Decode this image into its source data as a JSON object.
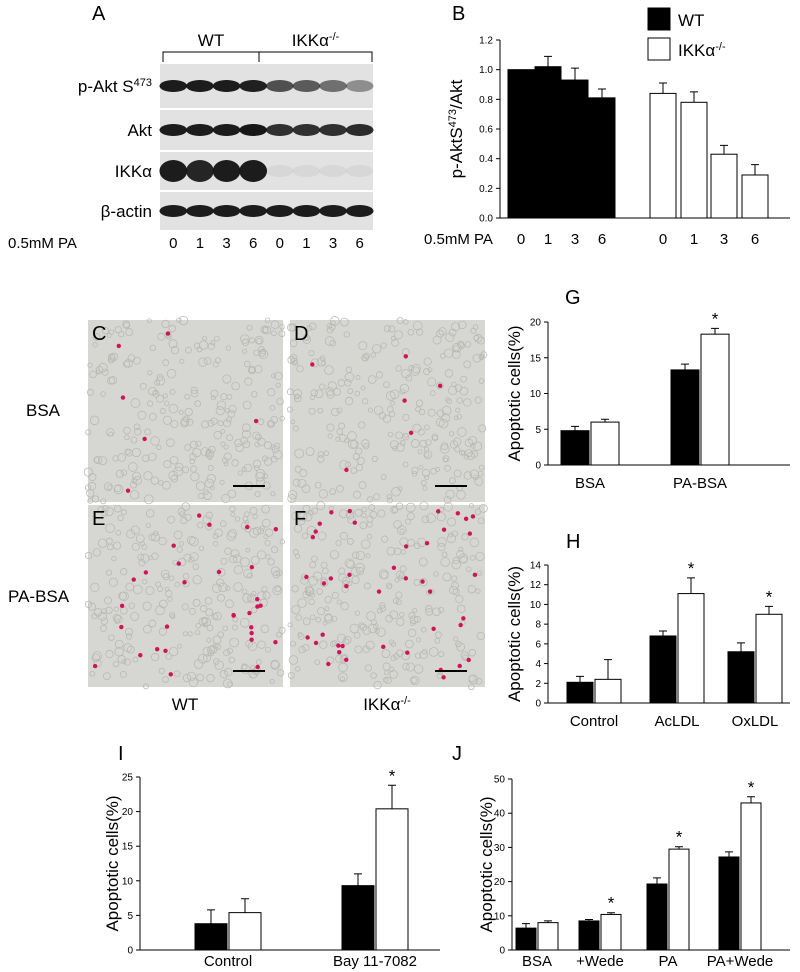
{
  "blot": {
    "panel": "A",
    "groups": [
      {
        "text": "WT"
      },
      {
        "text": "IKKα",
        "sup": "-/-"
      }
    ],
    "rows": [
      {
        "text": "p-Akt S",
        "sup": "473"
      },
      {
        "text": "Akt"
      },
      {
        "text": "IKKα"
      },
      {
        "text": "β-actin"
      }
    ],
    "treatment": "0.5mM PA",
    "lanes": [
      "0",
      "1",
      "3",
      "6",
      "0",
      "1",
      "3",
      "6"
    ]
  },
  "micrographs": {
    "panels": [
      "C",
      "D",
      "E",
      "F"
    ],
    "rows": [
      "BSA",
      "PA-BSA"
    ],
    "columns": [
      {
        "text": "WT"
      },
      {
        "text": "IKKα",
        "sup": "-/-"
      }
    ]
  },
  "chart_data": [
    {
      "type": "bar",
      "panel": "B",
      "ylabel": {
        "text": "p-AktS",
        "sup": "473",
        "tail": "/Akt"
      },
      "xlabel": "0.5mM PA",
      "categories": [
        "0",
        "1",
        "3",
        "6"
      ],
      "legend": "upper right",
      "ylim": [
        0,
        1.2
      ],
      "yticks": [
        {
          "value": 0,
          "label": "0.0"
        },
        0.2,
        0.4,
        0.6,
        0.8,
        {
          "value": 1,
          "label": "1.0"
        },
        1.2
      ],
      "series": [
        {
          "name": "WT",
          "color": "#000000",
          "values": [
            1.0,
            1.02,
            0.93,
            0.81
          ],
          "errors": [
            null,
            0.07,
            0.08,
            0.06
          ]
        },
        {
          "name": "IKKα",
          "name_sup": "-/-",
          "color": "#ffffff",
          "values": [
            0.84,
            0.78,
            0.43,
            0.29
          ],
          "errors": [
            0.07,
            0.07,
            0.06,
            0.07
          ]
        }
      ]
    },
    {
      "type": "bar",
      "panel": "G",
      "ylabel": {
        "text": "Apoptotic cells(%)"
      },
      "categories": [
        "BSA",
        "PA-BSA"
      ],
      "ylim": [
        0,
        20
      ],
      "yticks": [
        0,
        5,
        10,
        15,
        20
      ],
      "series": [
        {
          "color": "#000000",
          "values": [
            4.8,
            13.3
          ],
          "errors": [
            0.6,
            0.8
          ]
        },
        {
          "color": "#ffffff",
          "values": [
            6.0,
            18.3
          ],
          "errors": [
            0.4,
            0.8
          ],
          "annotations": [
            null,
            "*"
          ]
        }
      ]
    },
    {
      "type": "bar",
      "panel": "H",
      "ylabel": {
        "text": "Apoptotic cells(%)"
      },
      "categories": [
        "Control",
        "AcLDL",
        "OxLDL"
      ],
      "ylim": [
        0,
        14
      ],
      "yticks": [
        0,
        2,
        4,
        6,
        8,
        10,
        12,
        14
      ],
      "series": [
        {
          "color": "#000000",
          "values": [
            2.1,
            6.8,
            5.2
          ],
          "errors": [
            0.6,
            0.5,
            0.9
          ]
        },
        {
          "color": "#ffffff",
          "values": [
            2.4,
            11.1,
            9.0
          ],
          "errors": [
            2.0,
            1.6,
            0.8
          ],
          "annotations": [
            null,
            "*",
            "*"
          ]
        }
      ]
    },
    {
      "type": "bar",
      "panel": "I",
      "ylabel": {
        "text": "Apoptotic cells(%)"
      },
      "categories": [
        "Control",
        "Bay 11-7082"
      ],
      "ylim": [
        0,
        25
      ],
      "yticks": [
        0,
        5,
        10,
        15,
        20,
        25
      ],
      "series": [
        {
          "color": "#000000",
          "values": [
            3.8,
            9.3
          ],
          "errors": [
            2.0,
            1.7
          ]
        },
        {
          "color": "#ffffff",
          "values": [
            5.4,
            20.4
          ],
          "errors": [
            2.0,
            3.4
          ],
          "annotations": [
            null,
            "*"
          ]
        }
      ]
    },
    {
      "type": "bar",
      "panel": "J",
      "ylabel": {
        "text": "Apoptotic cells(%)"
      },
      "categories": [
        "BSA",
        "+Wede",
        "PA",
        "PA+Wede"
      ],
      "ylim": [
        0,
        50
      ],
      "yticks": [
        0,
        10,
        20,
        30,
        40,
        50
      ],
      "series": [
        {
          "color": "#000000",
          "values": [
            6.4,
            8.5,
            19.3,
            27.2
          ],
          "errors": [
            1.3,
            0.4,
            1.8,
            1.5
          ]
        },
        {
          "color": "#ffffff",
          "values": [
            8.0,
            10.4,
            29.5,
            43.0
          ],
          "errors": [
            0.5,
            0.5,
            0.7,
            1.8
          ],
          "annotations": [
            null,
            "*",
            "*",
            "*"
          ]
        }
      ]
    }
  ]
}
